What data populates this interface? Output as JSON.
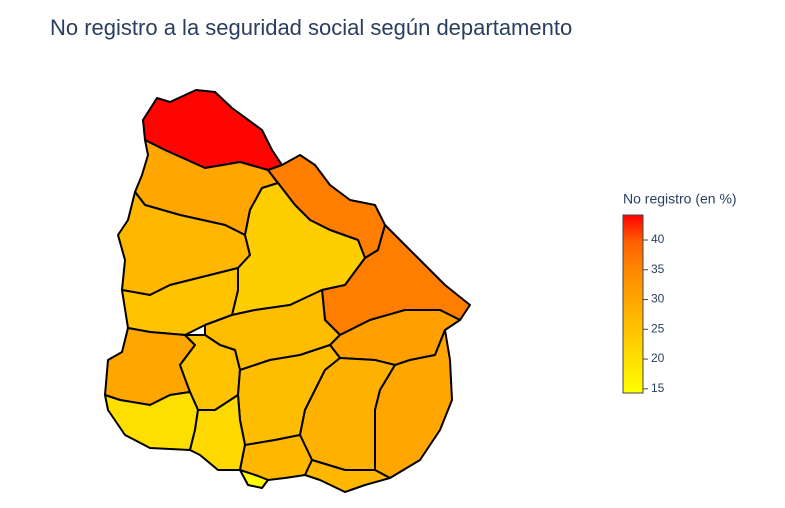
{
  "chart_data": {
    "type": "choropleth",
    "title": "No registro a la seguridad social según departamento",
    "colorbar_title": "No registro (en %)",
    "values": [
      44,
      30,
      36,
      27,
      23,
      36,
      25,
      26,
      31,
      30,
      25,
      26,
      28,
      30,
      20,
      21,
      27,
      27,
      15
    ],
    "zlim": [
      14.3,
      44.2
    ],
    "zticks": [
      15,
      20,
      25,
      30,
      35,
      40
    ],
    "colorscale": [
      [
        0,
        "#ffff00"
      ],
      [
        0.35,
        "#ffc400"
      ],
      [
        0.65,
        "#ff9000"
      ],
      [
        0.85,
        "#ff6000"
      ],
      [
        1,
        "#ff0000"
      ]
    ],
    "border_color": "#000000"
  }
}
